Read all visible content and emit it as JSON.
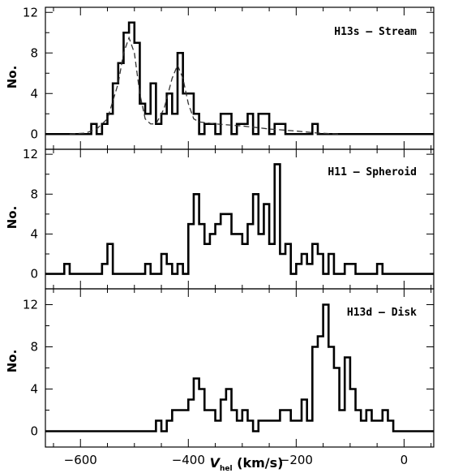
{
  "chart_data": [
    {
      "type": "histogram",
      "label": "H13s – Stream",
      "ylabel": "No.",
      "ylim": [
        -1.5,
        12.5
      ],
      "yticks": [
        "0",
        "4",
        "8",
        "12"
      ],
      "bin_width": 10,
      "bins": [
        {
          "x": -580,
          "y": 1
        },
        {
          "x": -570,
          "y": 0
        },
        {
          "x": -560,
          "y": 1
        },
        {
          "x": -550,
          "y": 2
        },
        {
          "x": -540,
          "y": 5
        },
        {
          "x": -530,
          "y": 7
        },
        {
          "x": -520,
          "y": 10
        },
        {
          "x": -510,
          "y": 11
        },
        {
          "x": -500,
          "y": 9
        },
        {
          "x": -490,
          "y": 3
        },
        {
          "x": -480,
          "y": 2
        },
        {
          "x": -470,
          "y": 5
        },
        {
          "x": -460,
          "y": 1
        },
        {
          "x": -450,
          "y": 2
        },
        {
          "x": -440,
          "y": 4
        },
        {
          "x": -430,
          "y": 2
        },
        {
          "x": -420,
          "y": 8
        },
        {
          "x": -410,
          "y": 4
        },
        {
          "x": -400,
          "y": 4
        },
        {
          "x": -390,
          "y": 2
        },
        {
          "x": -380,
          "y": 0
        },
        {
          "x": -370,
          "y": 1
        },
        {
          "x": -360,
          "y": 1
        },
        {
          "x": -350,
          "y": 0
        },
        {
          "x": -340,
          "y": 2
        },
        {
          "x": -330,
          "y": 2
        },
        {
          "x": -320,
          "y": 0
        },
        {
          "x": -310,
          "y": 1
        },
        {
          "x": -300,
          "y": 1
        },
        {
          "x": -290,
          "y": 2
        },
        {
          "x": -280,
          "y": 0
        },
        {
          "x": -270,
          "y": 2
        },
        {
          "x": -260,
          "y": 2
        },
        {
          "x": -250,
          "y": 0
        },
        {
          "x": -240,
          "y": 1
        },
        {
          "x": -230,
          "y": 1
        },
        {
          "x": -220,
          "y": 0
        },
        {
          "x": -210,
          "y": 0
        },
        {
          "x": -200,
          "y": 0
        },
        {
          "x": -190,
          "y": 0
        },
        {
          "x": -180,
          "y": 0
        },
        {
          "x": -170,
          "y": 1
        }
      ],
      "model_curve": [
        [
          -620,
          0
        ],
        [
          -590,
          0.1
        ],
        [
          -570,
          0.5
        ],
        [
          -550,
          1.5
        ],
        [
          -530,
          5
        ],
        [
          -520,
          8
        ],
        [
          -510,
          9.5
        ],
        [
          -500,
          8
        ],
        [
          -490,
          4
        ],
        [
          -480,
          1.5
        ],
        [
          -470,
          1
        ],
        [
          -460,
          1
        ],
        [
          -445,
          2.5
        ],
        [
          -430,
          5.5
        ],
        [
          -420,
          6.8
        ],
        [
          -410,
          5.5
        ],
        [
          -400,
          3
        ],
        [
          -390,
          1.5
        ],
        [
          -380,
          1.2
        ],
        [
          -350,
          1
        ],
        [
          -300,
          0.8
        ],
        [
          -250,
          0.5
        ],
        [
          -200,
          0.3
        ],
        [
          -160,
          0.1
        ],
        [
          -120,
          0
        ]
      ]
    },
    {
      "type": "histogram",
      "label": "H11 – Spheroid",
      "ylabel": "No.",
      "ylim": [
        -1.5,
        12.5
      ],
      "yticks": [
        "0",
        "4",
        "8",
        "12"
      ],
      "bin_width": 10,
      "bins": [
        {
          "x": -630,
          "y": 1
        },
        {
          "x": -620,
          "y": 0
        },
        {
          "x": -610,
          "y": 0
        },
        {
          "x": -600,
          "y": 0
        },
        {
          "x": -590,
          "y": 0
        },
        {
          "x": -580,
          "y": 0
        },
        {
          "x": -570,
          "y": 0
        },
        {
          "x": -560,
          "y": 1
        },
        {
          "x": -550,
          "y": 3
        },
        {
          "x": -540,
          "y": 0
        },
        {
          "x": -530,
          "y": 0
        },
        {
          "x": -520,
          "y": 0
        },
        {
          "x": -510,
          "y": 0
        },
        {
          "x": -500,
          "y": 0
        },
        {
          "x": -490,
          "y": 0
        },
        {
          "x": -480,
          "y": 1
        },
        {
          "x": -470,
          "y": 0
        },
        {
          "x": -460,
          "y": 0
        },
        {
          "x": -450,
          "y": 2
        },
        {
          "x": -440,
          "y": 1
        },
        {
          "x": -430,
          "y": 0
        },
        {
          "x": -420,
          "y": 1
        },
        {
          "x": -410,
          "y": 0
        },
        {
          "x": -400,
          "y": 5
        },
        {
          "x": -390,
          "y": 8
        },
        {
          "x": -380,
          "y": 5
        },
        {
          "x": -370,
          "y": 3
        },
        {
          "x": -360,
          "y": 4
        },
        {
          "x": -350,
          "y": 5
        },
        {
          "x": -340,
          "y": 6
        },
        {
          "x": -330,
          "y": 6
        },
        {
          "x": -320,
          "y": 4
        },
        {
          "x": -310,
          "y": 4
        },
        {
          "x": -300,
          "y": 3
        },
        {
          "x": -290,
          "y": 5
        },
        {
          "x": -280,
          "y": 8
        },
        {
          "x": -270,
          "y": 4
        },
        {
          "x": -260,
          "y": 7
        },
        {
          "x": -250,
          "y": 3
        },
        {
          "x": -240,
          "y": 11
        },
        {
          "x": -230,
          "y": 2
        },
        {
          "x": -220,
          "y": 3
        },
        {
          "x": -210,
          "y": 0
        },
        {
          "x": -200,
          "y": 1
        },
        {
          "x": -190,
          "y": 2
        },
        {
          "x": -180,
          "y": 1
        },
        {
          "x": -170,
          "y": 3
        },
        {
          "x": -160,
          "y": 2
        },
        {
          "x": -150,
          "y": 0
        },
        {
          "x": -140,
          "y": 2
        },
        {
          "x": -130,
          "y": 0
        },
        {
          "x": -120,
          "y": 0
        },
        {
          "x": -110,
          "y": 1
        },
        {
          "x": -100,
          "y": 1
        },
        {
          "x": -90,
          "y": 0
        },
        {
          "x": -80,
          "y": 0
        },
        {
          "x": -70,
          "y": 0
        },
        {
          "x": -60,
          "y": 0
        },
        {
          "x": -50,
          "y": 1
        }
      ]
    },
    {
      "type": "histogram",
      "label": "H13d – Disk",
      "ylabel": "No.",
      "ylim": [
        -1.5,
        13.5
      ],
      "yticks": [
        "0",
        "4",
        "8",
        "12"
      ],
      "bin_width": 10,
      "bins": [
        {
          "x": -460,
          "y": 1
        },
        {
          "x": -450,
          "y": 0
        },
        {
          "x": -440,
          "y": 1
        },
        {
          "x": -430,
          "y": 2
        },
        {
          "x": -420,
          "y": 2
        },
        {
          "x": -410,
          "y": 2
        },
        {
          "x": -400,
          "y": 3
        },
        {
          "x": -390,
          "y": 5
        },
        {
          "x": -380,
          "y": 4
        },
        {
          "x": -370,
          "y": 2
        },
        {
          "x": -360,
          "y": 2
        },
        {
          "x": -350,
          "y": 1
        },
        {
          "x": -340,
          "y": 3
        },
        {
          "x": -330,
          "y": 4
        },
        {
          "x": -320,
          "y": 2
        },
        {
          "x": -310,
          "y": 1
        },
        {
          "x": -300,
          "y": 2
        },
        {
          "x": -290,
          "y": 1
        },
        {
          "x": -280,
          "y": 0
        },
        {
          "x": -270,
          "y": 1
        },
        {
          "x": -260,
          "y": 1
        },
        {
          "x": -250,
          "y": 1
        },
        {
          "x": -240,
          "y": 1
        },
        {
          "x": -230,
          "y": 2
        },
        {
          "x": -220,
          "y": 2
        },
        {
          "x": -210,
          "y": 1
        },
        {
          "x": -200,
          "y": 1
        },
        {
          "x": -190,
          "y": 3
        },
        {
          "x": -180,
          "y": 1
        },
        {
          "x": -170,
          "y": 8
        },
        {
          "x": -160,
          "y": 9
        },
        {
          "x": -150,
          "y": 12
        },
        {
          "x": -140,
          "y": 8
        },
        {
          "x": -130,
          "y": 6
        },
        {
          "x": -120,
          "y": 2
        },
        {
          "x": -110,
          "y": 7
        },
        {
          "x": -100,
          "y": 4
        },
        {
          "x": -90,
          "y": 2
        },
        {
          "x": -80,
          "y": 1
        },
        {
          "x": -70,
          "y": 2
        },
        {
          "x": -60,
          "y": 1
        },
        {
          "x": -50,
          "y": 1
        },
        {
          "x": -40,
          "y": 2
        },
        {
          "x": -30,
          "y": 1
        }
      ]
    }
  ],
  "xaxis": {
    "xlim": [
      -665,
      55
    ],
    "ticks": [
      -600,
      -400,
      -200,
      0
    ],
    "tick_labels": [
      "−600",
      "−400",
      "−200",
      "0"
    ],
    "label_main": "V",
    "label_sub": "hel",
    "label_unit": " (km/s)"
  }
}
